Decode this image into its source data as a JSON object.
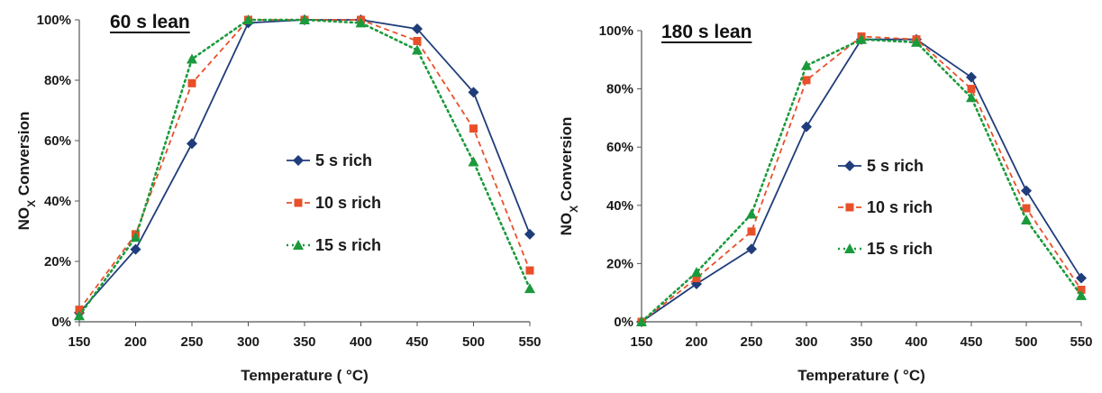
{
  "chart_data": [
    {
      "type": "line",
      "title": "60 s lean",
      "xlabel": "Temperature ( °C)",
      "ylabel": "NO",
      "ylabel_sub": "X",
      "ylabel_rest": " Conversion",
      "x": [
        150,
        200,
        250,
        300,
        350,
        400,
        450,
        500,
        550
      ],
      "xlim": [
        150,
        550
      ],
      "ylim": [
        0,
        100
      ],
      "y_ticks": [
        "0%",
        "20%",
        "40%",
        "60%",
        "80%",
        "100%"
      ],
      "x_ticks": [
        "150",
        "200",
        "250",
        "300",
        "350",
        "400",
        "450",
        "500",
        "550"
      ],
      "legend_position": "center-right",
      "grid": false,
      "series": [
        {
          "name": "5 s rich",
          "color": "#1f3d7a",
          "marker": "diamond",
          "dash": "solid",
          "values": [
            3,
            24,
            59,
            99,
            100,
            100,
            97,
            76,
            29
          ]
        },
        {
          "name": "10 s rich",
          "color": "#e8502a",
          "marker": "square",
          "dash": "dashed",
          "values": [
            4,
            29,
            79,
            100,
            100,
            100,
            93,
            64,
            17
          ]
        },
        {
          "name": "15 s rich",
          "color": "#1a9a3c",
          "marker": "triangle",
          "dash": "dotted",
          "values": [
            2,
            28,
            87,
            100,
            100,
            99,
            90,
            53,
            11
          ]
        }
      ]
    },
    {
      "type": "line",
      "title": "180 s lean",
      "xlabel": "Temperature ( °C)",
      "ylabel": "NO",
      "ylabel_sub": "X",
      "ylabel_rest": " Conversion",
      "x": [
        150,
        200,
        250,
        300,
        350,
        400,
        450,
        500,
        550
      ],
      "xlim": [
        150,
        550
      ],
      "ylim": [
        0,
        100
      ],
      "y_ticks": [
        "0%",
        "20%",
        "40%",
        "60%",
        "80%",
        "100%"
      ],
      "x_ticks": [
        "150",
        "200",
        "250",
        "300",
        "350",
        "400",
        "450",
        "500",
        "550"
      ],
      "legend_position": "center",
      "grid": false,
      "series": [
        {
          "name": "5 s rich",
          "color": "#1f3d7a",
          "marker": "diamond",
          "dash": "solid",
          "values": [
            0,
            13,
            25,
            67,
            97,
            97,
            84,
            45,
            15
          ]
        },
        {
          "name": "10 s rich",
          "color": "#e8502a",
          "marker": "square",
          "dash": "dashed",
          "values": [
            0,
            15,
            31,
            83,
            98,
            97,
            80,
            39,
            11
          ]
        },
        {
          "name": "15 s rich",
          "color": "#1a9a3c",
          "marker": "triangle",
          "dash": "dotted",
          "values": [
            0,
            17,
            37,
            88,
            97,
            96,
            77,
            35,
            9
          ]
        }
      ]
    }
  ]
}
